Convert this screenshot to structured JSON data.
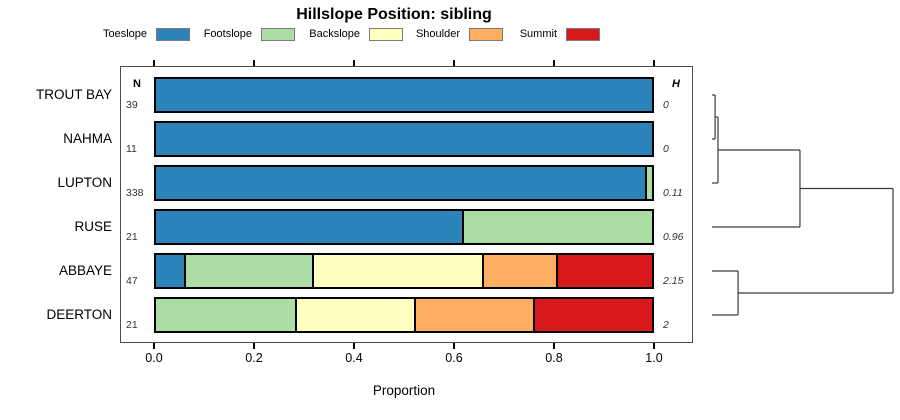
{
  "title": "Hillslope Position: sibling",
  "legend": {
    "items": [
      {
        "label": "Toeslope",
        "color": "#2B83BA"
      },
      {
        "label": "Footslope",
        "color": "#ABDDA4"
      },
      {
        "label": "Backslope",
        "color": "#FFFFBF"
      },
      {
        "label": "Shoulder",
        "color": "#FDAE61"
      },
      {
        "label": "Summit",
        "color": "#D7191C"
      }
    ]
  },
  "columns": {
    "n_header": "N",
    "h_header": "H"
  },
  "axis": {
    "label": "Proportion",
    "ticks": [
      {
        "value": 0.0,
        "label": "0.0"
      },
      {
        "value": 0.2,
        "label": "0.2"
      },
      {
        "value": 0.4,
        "label": "0.4"
      },
      {
        "value": 0.6,
        "label": "0.6"
      },
      {
        "value": 0.8,
        "label": "0.8"
      },
      {
        "value": 1.0,
        "label": "1.0"
      }
    ]
  },
  "chart_data": {
    "type": "bar",
    "orientation": "horizontal",
    "stacked": true,
    "title": "Hillslope Position: sibling",
    "xlabel": "Proportion",
    "xlim": [
      0,
      1
    ],
    "grid": false,
    "legend_position": "top",
    "categories": [
      "Toeslope",
      "Footslope",
      "Backslope",
      "Shoulder",
      "Summit"
    ],
    "rows": [
      {
        "label": "TROUT BAY",
        "n": 39,
        "h": "0",
        "segments": [
          {
            "category": "Toeslope",
            "proportion": 1.0
          }
        ]
      },
      {
        "label": "NAHMA",
        "n": 11,
        "h": "0",
        "segments": [
          {
            "category": "Toeslope",
            "proportion": 1.0
          }
        ]
      },
      {
        "label": "LUPTON",
        "n": 338,
        "h": "0.11",
        "segments": [
          {
            "category": "Toeslope",
            "proportion": 0.985
          },
          {
            "category": "Footslope",
            "proportion": 0.015
          }
        ]
      },
      {
        "label": "RUSE",
        "n": 21,
        "h": "0.96",
        "segments": [
          {
            "category": "Toeslope",
            "proportion": 0.619
          },
          {
            "category": "Footslope",
            "proportion": 0.381
          }
        ]
      },
      {
        "label": "ABBAYE",
        "n": 47,
        "h": "2.15",
        "segments": [
          {
            "category": "Toeslope",
            "proportion": 0.064
          },
          {
            "category": "Footslope",
            "proportion": 0.255
          },
          {
            "category": "Backslope",
            "proportion": 0.34
          },
          {
            "category": "Shoulder",
            "proportion": 0.149
          },
          {
            "category": "Summit",
            "proportion": 0.191
          }
        ]
      },
      {
        "label": "DEERTON",
        "n": 21,
        "h": "2",
        "segments": [
          {
            "category": "Footslope",
            "proportion": 0.286
          },
          {
            "category": "Backslope",
            "proportion": 0.238
          },
          {
            "category": "Shoulder",
            "proportion": 0.238
          },
          {
            "category": "Summit",
            "proportion": 0.238
          }
        ]
      }
    ],
    "dendrogram": {
      "leaf_order": [
        "TROUT BAY",
        "NAHMA",
        "LUPTON",
        "RUSE",
        "ABBAYE",
        "DEERTON"
      ],
      "merges": [
        {
          "a": "leaf:0",
          "b": "leaf:1",
          "height": 0.017
        },
        {
          "a": "merge:0",
          "b": "leaf:2",
          "height": 0.033
        },
        {
          "a": "merge:1",
          "b": "leaf:3",
          "height": 0.486
        },
        {
          "a": "leaf:4",
          "b": "leaf:5",
          "height": 0.144
        },
        {
          "a": "merge:2",
          "b": "merge:3",
          "height": 1.0
        }
      ]
    }
  }
}
